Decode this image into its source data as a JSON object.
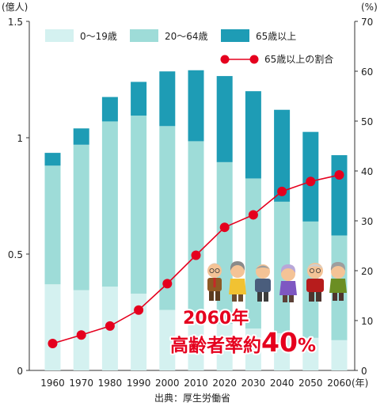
{
  "chart_data": {
    "type": "bar",
    "stacked": true,
    "source_note": "出典：厚生労働省",
    "y_left_unit": "(億人)",
    "y_right_unit": "(%)",
    "x_unit": "(年)",
    "ylim_left": [
      0,
      1.5
    ],
    "ylim_right": [
      0,
      70
    ],
    "yticks_left": [
      "0",
      "0.5",
      "1",
      "1.5"
    ],
    "yticks_right": [
      "0",
      "10",
      "20",
      "30",
      "40",
      "50",
      "60",
      "70"
    ],
    "categories": [
      "1960",
      "1970",
      "1980",
      "1990",
      "2000",
      "2010",
      "2020",
      "2030",
      "2040",
      "2050",
      "2060"
    ],
    "series": [
      {
        "name": "0〜19歳",
        "color": "#d4f1f0",
        "values": [
          0.37,
          0.345,
          0.36,
          0.33,
          0.26,
          0.22,
          0.2,
          0.18,
          0.16,
          0.14,
          0.13
        ]
      },
      {
        "name": "20〜64歳",
        "color": "#9edcd8",
        "values": [
          0.51,
          0.625,
          0.71,
          0.765,
          0.79,
          0.765,
          0.695,
          0.645,
          0.565,
          0.5,
          0.45
        ]
      },
      {
        "name": "65歳以上",
        "color": "#1e9cb5",
        "values": [
          0.055,
          0.07,
          0.105,
          0.145,
          0.235,
          0.305,
          0.37,
          0.375,
          0.395,
          0.385,
          0.345
        ]
      }
    ],
    "line_series": {
      "name": "65歳以上の割合",
      "color": "#e5001e",
      "values": [
        5.4,
        7.1,
        8.9,
        12.1,
        17.4,
        23.1,
        28.7,
        31.2,
        35.9,
        37.9,
        39.2
      ]
    },
    "legend_position": "top",
    "annotation": {
      "line1": "2060年",
      "line2_prefix": "高齢者率約",
      "line2_number": "40",
      "line2_percent": "%"
    }
  }
}
